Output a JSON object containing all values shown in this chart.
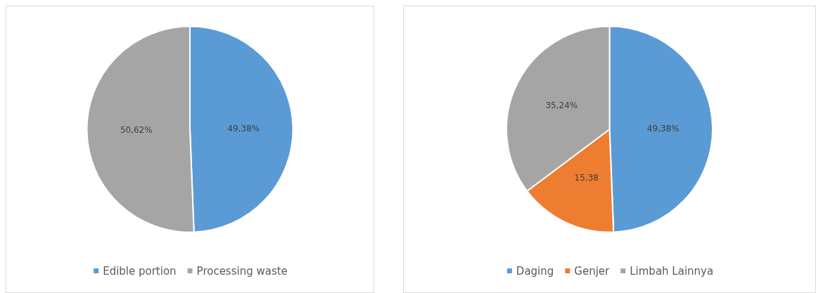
{
  "chart_data": [
    {
      "type": "pie",
      "categories": [
        "Edible portion",
        "Processing waste"
      ],
      "values": [
        49.38,
        50.62
      ],
      "colors": [
        "#5b9bd5",
        "#a5a5a5"
      ],
      "value_labels": [
        "49,38%",
        "50,62%"
      ],
      "legend": "bottom"
    },
    {
      "type": "pie",
      "categories": [
        "Daging",
        "Genjer",
        "Limbah Lainnya"
      ],
      "values": [
        49.38,
        15.38,
        35.24
      ],
      "colors": [
        "#5b9bd5",
        "#ed7d31",
        "#a5a5a5"
      ],
      "value_labels": [
        "49,38%",
        "15.38",
        "35,24%"
      ],
      "legend": "bottom"
    }
  ]
}
